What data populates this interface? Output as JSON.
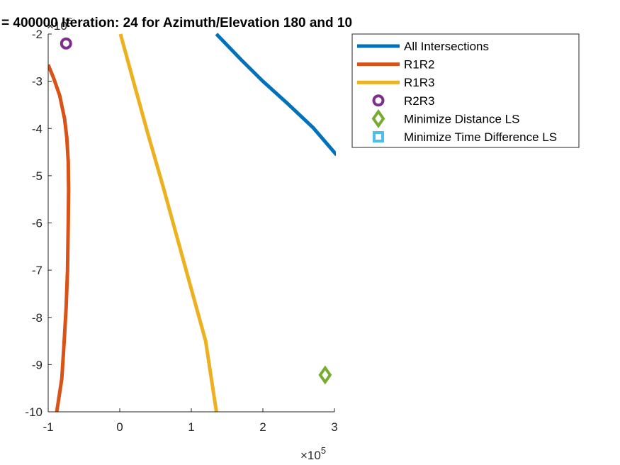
{
  "chart_data": {
    "type": "line",
    "title": "= 400000 Iteration: 24 for Azimuth/Elevation 180 and 10",
    "xlabel": "",
    "ylabel": "",
    "xlim": [
      -100000,
      300000
    ],
    "ylim": [
      -10000000,
      -2000000
    ],
    "x_ticks": [
      -100000,
      0,
      100000,
      200000,
      300000
    ],
    "x_tick_labels": [
      "-1",
      "0",
      "1",
      "2",
      "3"
    ],
    "x_exponent": {
      "base": "×10",
      "power": "5"
    },
    "y_ticks": [
      -2000000,
      -3000000,
      -4000000,
      -5000000,
      -6000000,
      -7000000,
      -8000000,
      -9000000,
      -10000000
    ],
    "y_tick_labels": [
      "-2",
      "-3",
      "-4",
      "-5",
      "-6",
      "-7",
      "-8",
      "-9",
      "-10"
    ],
    "y_exponent": {
      "base": "×10",
      "power": "6"
    },
    "grid": false,
    "legend_position": "top-right outside",
    "series": [
      {
        "name": "All Intersections",
        "kind": "line",
        "color": "#0072BD",
        "x": [
          135000,
          170000,
          200000,
          235000,
          270000,
          303000
        ],
        "y": [
          -2000000,
          -2550000,
          -3000000,
          -3480000,
          -3980000,
          -4560000
        ]
      },
      {
        "name": "R1R2",
        "kind": "line",
        "color": "#D95319",
        "x": [
          -100000,
          -92000,
          -84000,
          -77000,
          -74000,
          -72000,
          -71500,
          -72000,
          -73000,
          -75000,
          -78000,
          -81000,
          -88000
        ],
        "y": [
          -2650000,
          -2950000,
          -3300000,
          -3800000,
          -4200000,
          -4700000,
          -5300000,
          -6000000,
          -7000000,
          -7800000,
          -8600000,
          -9300000,
          -10000000
        ]
      },
      {
        "name": "R1R3",
        "kind": "line",
        "color": "#EDB120",
        "x": [
          1000,
          20000,
          40000,
          60000,
          80000,
          100000,
          120000,
          135000
        ],
        "y": [
          -2000000,
          -3050000,
          -4150000,
          -5200000,
          -6300000,
          -7400000,
          -8500000,
          -10000000
        ]
      },
      {
        "name": "R2R3",
        "kind": "marker",
        "marker": "circle",
        "color": "#7E2F8E",
        "x": [
          -75000
        ],
        "y": [
          -2200000
        ]
      },
      {
        "name": "Minimize Distance LS",
        "kind": "marker",
        "marker": "diamond",
        "color": "#77AC30",
        "x": [
          287000
        ],
        "y": [
          -9220000
        ]
      },
      {
        "name": "Minimize Time Difference LS",
        "kind": "marker",
        "marker": "square",
        "color": "#4DBEEE",
        "x": [],
        "y": []
      }
    ]
  }
}
